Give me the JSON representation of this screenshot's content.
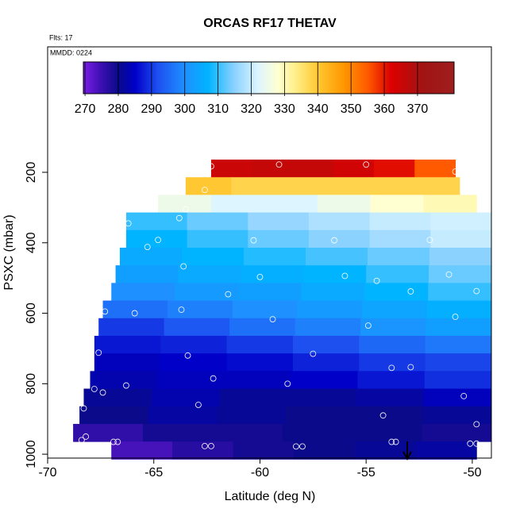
{
  "chart_data": {
    "type": "heatmap",
    "title": "ORCAS RF17 THETAV",
    "annotations": [
      "Flts: 17",
      "MMDD: 0224"
    ],
    "x_label": "Latitude (deg N)",
    "y_label": "PSXC (mbar)",
    "xlim": [
      -70,
      -49.1
    ],
    "xticks": [
      -70,
      -65,
      -60,
      -55,
      -50
    ],
    "ylim": [
      1011,
      -156
    ],
    "yticks": [
      200,
      400,
      600,
      800,
      1000
    ],
    "colorbar_lim": [
      269.5,
      381
    ],
    "colorbar_ticks": [
      270,
      280,
      290,
      300,
      310,
      320,
      330,
      340,
      350,
      360,
      370
    ],
    "colorscale": [
      [
        269.5,
        "#7b1ee6"
      ],
      [
        275,
        "#3a0fb0"
      ],
      [
        280,
        "#0a0a8a"
      ],
      [
        285,
        "#0000c8"
      ],
      [
        292,
        "#1e50f0"
      ],
      [
        300,
        "#1e90ff"
      ],
      [
        307,
        "#00b4ff"
      ],
      [
        315,
        "#8cd2ff"
      ],
      [
        322,
        "#dcf5ff"
      ],
      [
        328,
        "#ffffd2"
      ],
      [
        333,
        "#fff08c"
      ],
      [
        340,
        "#ffc832"
      ],
      [
        348,
        "#ff9600"
      ],
      [
        355,
        "#ff5a00"
      ],
      [
        362,
        "#dc0000"
      ],
      [
        372,
        "#a01414"
      ],
      [
        381,
        "#a01e1e"
      ]
    ],
    "rows": [
      {
        "p": [
          164,
          214
        ],
        "lat": [
          -62.3,
          -50.8
        ],
        "values": [
          365,
          366,
          366,
          364,
          361,
          355
        ]
      },
      {
        "p": [
          214,
          264
        ],
        "lat": [
          -63.5,
          -50.6
        ],
        "values": [
          340,
          338,
          338,
          338,
          338,
          338
        ]
      },
      {
        "p": [
          264,
          314
        ],
        "lat": [
          -64.8,
          -49.8
        ],
        "values": [
          325,
          322,
          322,
          325,
          328,
          330
        ]
      },
      {
        "p": [
          314,
          364
        ],
        "lat": [
          -66.3,
          -49.1
        ],
        "values": [
          310,
          313,
          316,
          318,
          320,
          321
        ]
      },
      {
        "p": [
          364,
          414
        ],
        "lat": [
          -66.3,
          -49.1
        ],
        "values": [
          307,
          310,
          313,
          315,
          317,
          320
        ]
      },
      {
        "p": [
          414,
          464
        ],
        "lat": [
          -66.6,
          -49.1
        ],
        "values": [
          305,
          307,
          309,
          311,
          313,
          315
        ]
      },
      {
        "p": [
          464,
          514
        ],
        "lat": [
          -66.8,
          -49.1
        ],
        "values": [
          303,
          305,
          306,
          307,
          310,
          313
        ]
      },
      {
        "p": [
          514,
          564
        ],
        "lat": [
          -67.0,
          -49.1
        ],
        "values": [
          300,
          302,
          303,
          305,
          307,
          310
        ]
      },
      {
        "p": [
          564,
          614
        ],
        "lat": [
          -67.4,
          -49.1
        ],
        "values": [
          296,
          298,
          300,
          302,
          304,
          306
        ]
      },
      {
        "p": [
          614,
          664
        ],
        "lat": [
          -67.6,
          -49.1
        ],
        "values": [
          290,
          293,
          296,
          298,
          301,
          303
        ]
      },
      {
        "p": [
          664,
          714
        ],
        "lat": [
          -67.8,
          -49.1
        ],
        "values": [
          287,
          288,
          290,
          292,
          295,
          297
        ]
      },
      {
        "p": [
          714,
          764
        ],
        "lat": [
          -67.8,
          -49.1
        ],
        "values": [
          284,
          285,
          286,
          288,
          290,
          291
        ]
      },
      {
        "p": [
          764,
          814
        ],
        "lat": [
          -68.0,
          -49.1
        ],
        "values": [
          283,
          284,
          284,
          285,
          287,
          289
        ]
      },
      {
        "p": [
          814,
          864
        ],
        "lat": [
          -68.3,
          -49.1
        ],
        "values": [
          281,
          283,
          281,
          281,
          282,
          284
        ]
      },
      {
        "p": [
          864,
          914
        ],
        "lat": [
          -68.5,
          -49.1
        ],
        "values": [
          280,
          282,
          281,
          280,
          280,
          281
        ]
      },
      {
        "p": [
          914,
          964
        ],
        "lat": [
          -68.8,
          -49.1
        ],
        "values": [
          276,
          279,
          279,
          280,
          280,
          279
        ]
      },
      {
        "p": [
          964,
          1014
        ],
        "lat": [
          -67.0,
          -49.8
        ],
        "values": [
          274,
          277,
          279,
          280,
          281,
          282
        ]
      }
    ],
    "points_x": [
      -62.3,
      -59.1,
      -55.0,
      -50.8,
      -62.6,
      -63.5,
      -66.2,
      -63.8,
      -64.8,
      -60.3,
      -56.5,
      -52.0,
      -65.3,
      -63.6,
      -61.5,
      -60.0,
      -56.0,
      -54.5,
      -51.1,
      -52.9,
      -49.8,
      -67.3,
      -65.9,
      -63.7,
      -59.4,
      -54.9,
      -50.8,
      -67.6,
      -63.4,
      -57.5,
      -53.8,
      -52.9,
      -62.2,
      -58.7,
      -67.8,
      -67.4,
      -66.3,
      -68.3,
      -62.9,
      -50.4,
      -54.2,
      -49.8,
      -68.2,
      -66.9,
      -66.7,
      -62.6,
      -62.3,
      -58.0,
      -58.3,
      -53.8,
      -53.6,
      -50.1,
      -49.8,
      -68.4
    ],
    "points_y": [
      183,
      178,
      178,
      198,
      250,
      305,
      345,
      330,
      392,
      393,
      393,
      392,
      412,
      467,
      546,
      497,
      494,
      508,
      490,
      538,
      537,
      595,
      600,
      590,
      617,
      635,
      610,
      712,
      720,
      715,
      755,
      753,
      785,
      800,
      815,
      825,
      805,
      870,
      860,
      835,
      890,
      915,
      950,
      965,
      965,
      977,
      977,
      978,
      978,
      965,
      965,
      970,
      970,
      960
    ]
  }
}
